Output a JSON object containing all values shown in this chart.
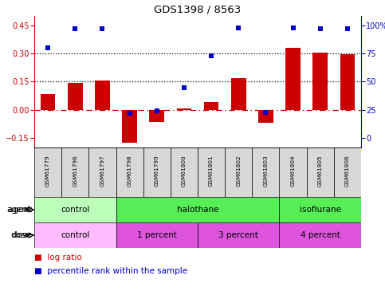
{
  "title": "GDS1398 / 8563",
  "samples": [
    "GSM61779",
    "GSM61796",
    "GSM61797",
    "GSM61798",
    "GSM61799",
    "GSM61800",
    "GSM61801",
    "GSM61802",
    "GSM61803",
    "GSM61804",
    "GSM61805",
    "GSM61806"
  ],
  "log_ratio": [
    0.085,
    0.145,
    0.155,
    -0.175,
    -0.065,
    0.008,
    0.04,
    0.17,
    -0.07,
    0.33,
    0.305,
    0.295
  ],
  "percentile_rank": [
    80,
    97,
    97,
    22,
    24,
    45,
    73,
    98,
    23,
    98,
    97,
    97
  ],
  "ylim_lo": -0.2,
  "ylim_hi": 0.5,
  "yticks_left": [
    -0.15,
    0.0,
    0.15,
    0.3,
    0.45
  ],
  "yticks_right": [
    0,
    25,
    50,
    75,
    100
  ],
  "hlines": [
    0.15,
    0.3
  ],
  "bar_color": "#CC0000",
  "dot_color": "#0000CC",
  "zero_line_color": "#CC0000",
  "agent_groups": [
    {
      "label": "control",
      "start": 0,
      "end": 3,
      "color": "#BBFFBB"
    },
    {
      "label": "halothane",
      "start": 3,
      "end": 9,
      "color": "#55EE55"
    },
    {
      "label": "isoflurane",
      "start": 9,
      "end": 12,
      "color": "#55EE55"
    }
  ],
  "dose_groups": [
    {
      "label": "control",
      "start": 0,
      "end": 3,
      "color": "#FFBBFF"
    },
    {
      "label": "1 percent",
      "start": 3,
      "end": 6,
      "color": "#DD55DD"
    },
    {
      "label": "3 percent",
      "start": 6,
      "end": 9,
      "color": "#DD55DD"
    },
    {
      "label": "4 percent",
      "start": 9,
      "end": 12,
      "color": "#DD55DD"
    }
  ],
  "legend_bar_label": "log ratio",
  "legend_dot_label": "percentile rank within the sample"
}
